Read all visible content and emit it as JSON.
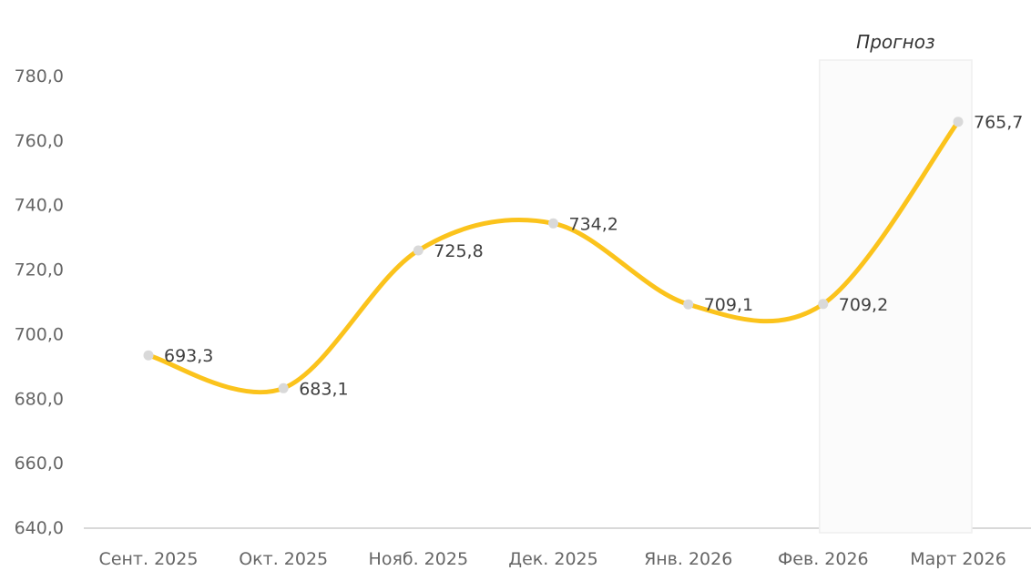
{
  "chart_data": {
    "type": "line",
    "title": "",
    "xlabel": "",
    "ylabel": "",
    "categories": [
      "Сент. 2025",
      "Окт. 2025",
      "Нояб. 2025",
      "Дек. 2025",
      "Янв. 2026",
      "Фев. 2026",
      "Март 2026"
    ],
    "values": [
      693.3,
      683.1,
      725.8,
      734.2,
      709.1,
      709.2,
      765.7
    ],
    "value_labels": [
      "693,3",
      "683,1",
      "725,8",
      "734,2",
      "709,1",
      "709,2",
      "765,7"
    ],
    "ylim": [
      640,
      780
    ],
    "y_ticks": [
      640,
      660,
      680,
      700,
      720,
      740,
      760,
      780
    ],
    "y_tick_labels": [
      "640,0",
      "660,0",
      "680,0",
      "700,0",
      "720,0",
      "740,0",
      "760,0",
      "780,0"
    ],
    "grid": false,
    "legend": "none",
    "line_smooth": true,
    "forecast": {
      "label": "Прогноз",
      "start_index": 5,
      "end_index": 6
    },
    "colors": {
      "line": "#FBC31C",
      "marker": "#D9D9D9",
      "value_label": "#404040",
      "tick_label": "#666666",
      "axis_line": "#D9D9D9",
      "forecast_fill": "#FBFBFB",
      "forecast_border": "#EFEFEF",
      "forecast_label": "#333333"
    }
  }
}
